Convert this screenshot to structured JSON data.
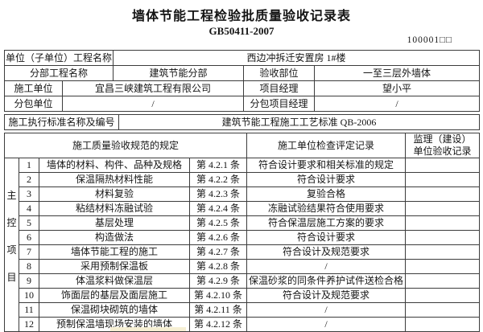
{
  "page": {
    "title": "墙体节能工程检验批质量验收记录表",
    "standard_code": "GB50411-2007",
    "serial": "100001□□"
  },
  "info": {
    "unit_project_label": "单位（子单位）工程名称",
    "unit_project_value": "西边冲拆迁安置房 1#楼",
    "division_label": "分部工程名称",
    "division_value": "建筑节能分部",
    "acceptance_part_label": "验收部位",
    "acceptance_part_value": "一至三层外墙体",
    "construction_unit_label": "施工单位",
    "construction_unit_value": "宜昌三峡建筑工程有限公司",
    "project_manager_label": "项目经理",
    "project_manager_value": "望小平",
    "subcontractor_label": "分包单位",
    "subcontractor_value": "/",
    "sub_pm_label": "分包项目经理",
    "sub_pm_value": "/",
    "exec_standard_label": "施工执行标准名称及编号",
    "exec_standard_value": "建筑节能工程施工工艺标准 QB-2006"
  },
  "checklist": {
    "section_chars": [
      "主",
      "控",
      "项",
      "目"
    ],
    "headers": {
      "spec": "施工质量验收规范的规定",
      "record": "施工单位检查评定记录",
      "monitor_line1": "监理（建设）",
      "monitor_line2": "单位验收记录"
    },
    "rows": [
      {
        "no": "1",
        "item": "墙体的材料、构件、品种及规格",
        "article": "第 4.2.1 条",
        "record": "符合设计要求和相关标准的规定",
        "monitor": ""
      },
      {
        "no": "2",
        "item": "保温隔热材料性能",
        "article": "第 4.2.2 条",
        "record": "符合设计要求",
        "monitor": ""
      },
      {
        "no": "3",
        "item": "材料复验",
        "article": "第 4.2.3 条",
        "record": "复验合格",
        "monitor": ""
      },
      {
        "no": "4",
        "item": "粘结材料冻融试验",
        "article": "第 4.2.4 条",
        "record": "冻融试验结果符合使用要求",
        "monitor": ""
      },
      {
        "no": "5",
        "item": "基层处理",
        "article": "第 4.2.5 条",
        "record": "符合保温层施工方案的要求",
        "monitor": ""
      },
      {
        "no": "6",
        "item": "构造做法",
        "article": "第 4.2.6 条",
        "record": "符合设计要求",
        "monitor": ""
      },
      {
        "no": "7",
        "item": "墙体节能工程的施工",
        "article": "第 4.2.7 条",
        "record": "符合设计及规范要求",
        "monitor": ""
      },
      {
        "no": "8",
        "item": "采用预制保温板",
        "article": "第 4.2.8 条",
        "record": "/",
        "monitor": ""
      },
      {
        "no": "9",
        "item": "体温浆料做保温层",
        "article": "第 4.2.9 条",
        "record": "保温砂浆的同条件养护试件送检合格",
        "monitor": ""
      },
      {
        "no": "10",
        "item": "饰面层的基层及面层施工",
        "article": "第 4.2.10 条",
        "record": "符合设计及规范要求",
        "monitor": ""
      },
      {
        "no": "11",
        "item": "保温砌块砌筑的墙体",
        "article": "第 4.2.11 条",
        "record": "/",
        "monitor": ""
      },
      {
        "no": "12",
        "item": "预制保温墙现场安装的墙体",
        "article": "第 4.2.12 条",
        "record": "/",
        "monitor": ""
      }
    ]
  }
}
